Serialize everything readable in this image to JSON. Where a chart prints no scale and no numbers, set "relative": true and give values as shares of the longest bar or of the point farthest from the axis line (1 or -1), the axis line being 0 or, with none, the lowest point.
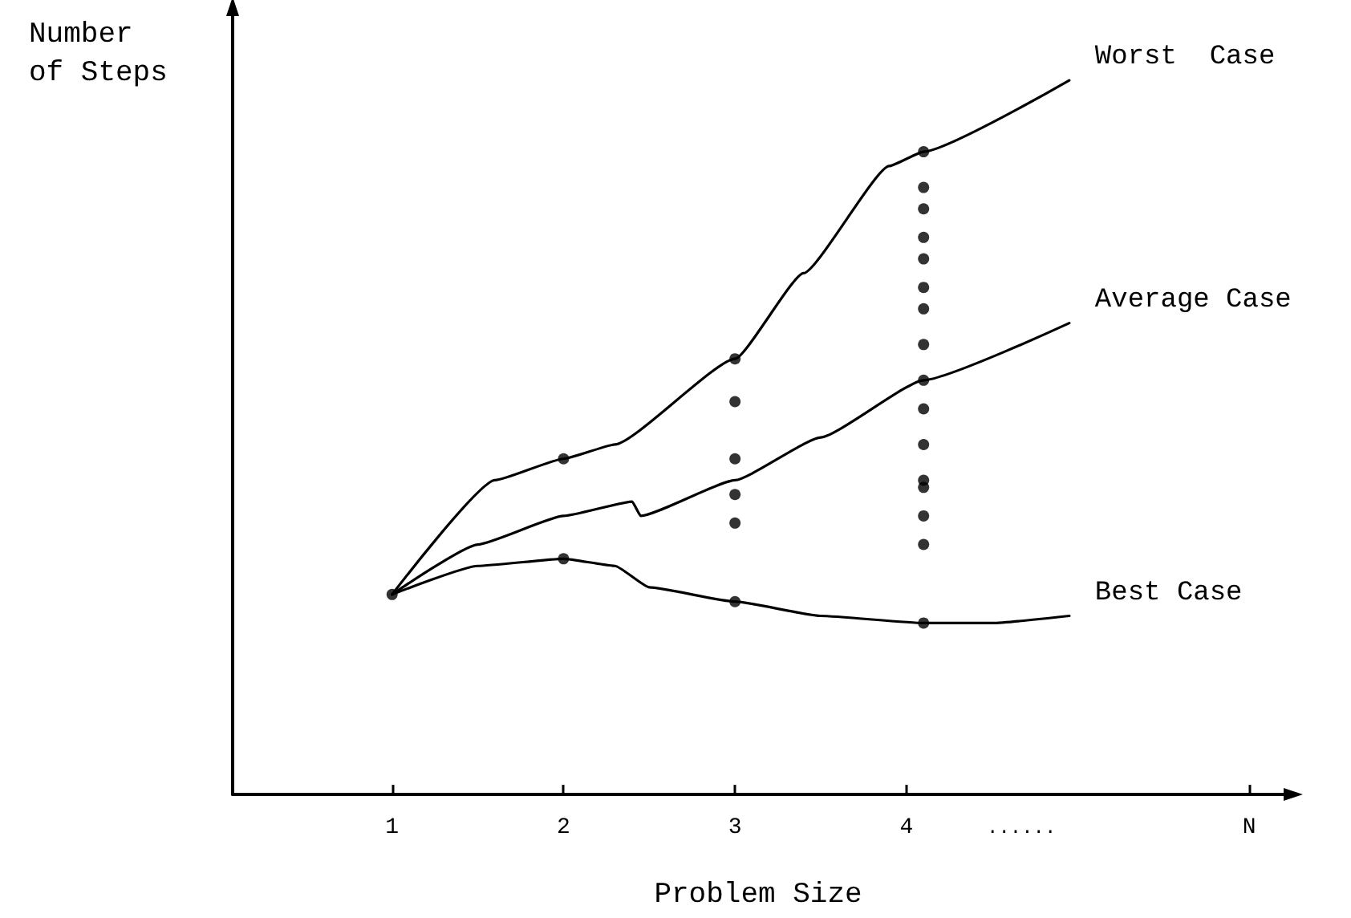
{
  "chart_data": {
    "type": "line",
    "relative": true,
    "xlabel": "Problem Size",
    "ylabel": "Number\nof Steps",
    "xlim": [
      0.07,
      6.2
    ],
    "xticks": [
      1,
      2,
      3,
      4,
      {
        "value": 6,
        "label": "N"
      }
    ],
    "tick_labels": "x",
    "marker": "none",
    "line_style": "solid",
    "grid": false,
    "legend": false,
    "annotations": [
      "......"
    ],
    "series": [
      {
        "name": "Worst  Case",
        "color": "#000000",
        "x": [
          1,
          1.6,
          2,
          2.3,
          3,
          3.4,
          3.9,
          4.1,
          4.95
        ],
        "values": [
          0.28,
          0.44,
          0.47,
          0.49,
          0.61,
          0.73,
          0.88,
          0.9,
          1
        ]
      },
      {
        "name": "Average Case",
        "color": "#000000",
        "x": [
          1,
          1.5,
          2,
          2.4,
          2.45,
          3,
          3.5,
          4.1,
          4.95
        ],
        "values": [
          0.28,
          0.35,
          0.39,
          0.41,
          0.39,
          0.44,
          0.5,
          0.58,
          0.66
        ]
      },
      {
        "name": "Best Case",
        "color": "#000000",
        "x": [
          1,
          1.5,
          2,
          2.3,
          2.5,
          3,
          3.5,
          4.1,
          4.5,
          4.95
        ],
        "values": [
          0.28,
          0.32,
          0.33,
          0.32,
          0.29,
          0.27,
          0.25,
          0.24,
          0.24,
          0.25
        ]
      },
      {
        "type": "scatter",
        "marker": "circle",
        "color": "#000000",
        "x": [
          1,
          2,
          2,
          3,
          3,
          3,
          3,
          3,
          3,
          4.1,
          4.1,
          4.1,
          4.1,
          4.1,
          4.1,
          4.1,
          4.1,
          4.1,
          4.1,
          4.1,
          4.1,
          4.1,
          4.1,
          4.1,
          4.1
        ],
        "values": [
          0.28,
          0.47,
          0.33,
          0.61,
          0.55,
          0.47,
          0.42,
          0.38,
          0.27,
          0.9,
          0.85,
          0.82,
          0.78,
          0.75,
          0.71,
          0.68,
          0.63,
          0.58,
          0.54,
          0.49,
          0.44,
          0.43,
          0.39,
          0.35,
          0.24
        ]
      }
    ]
  }
}
